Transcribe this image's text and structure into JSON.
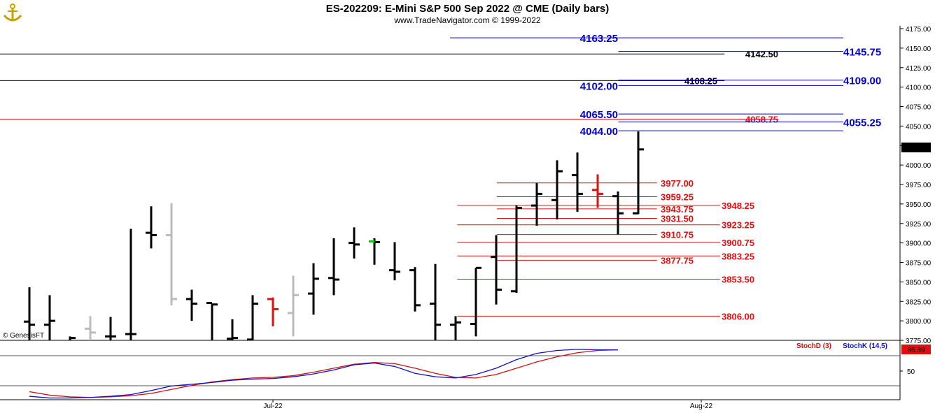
{
  "header": {
    "title": "ES-202209:  E-Mini S&P 500 Sep 2022 @ CME  (Daily bars)",
    "subtitle": "www.TradeNavigator.com © 1999-2022",
    "copyright": "© GenesisFT",
    "logo_icon": "anchor-logo-icon"
  },
  "colors": {
    "black": "#000000",
    "blue": "#0000cc",
    "red": "#e01010",
    "gray": "#bbbbbb",
    "green": "#00cc00",
    "stochD": "#d01010",
    "stochK": "#1010d0"
  },
  "chart_data": [
    {
      "type": "ohlc",
      "title": "ES-202209:  E-Mini S&P 500 Sep 2022 @ CME  (Daily bars)",
      "ylim": [
        3775,
        4175
      ],
      "y_ticks": [
        "4175.00",
        "4150.00",
        "4125.00",
        "4100.00",
        "4075.00",
        "4050.00",
        "4025.00",
        "4000.00",
        "3975.00",
        "3950.00",
        "3925.00",
        "3900.00",
        "3875.00",
        "3850.00",
        "3825.00",
        "3800.00",
        "3775.00"
      ],
      "x_ticks": [
        "Jul-22",
        "Aug-22"
      ],
      "last_price": "4020.50",
      "bars": [
        {
          "o": 3799,
          "h": 3843,
          "l": 3775,
          "c": 3795,
          "color": "black"
        },
        {
          "o": 3795,
          "h": 3833,
          "l": 3775,
          "c": 3800,
          "color": "black"
        },
        {
          "o": 3768,
          "h": 3780,
          "l": 3770,
          "c": 3778,
          "color": "black"
        },
        {
          "o": 3790,
          "h": 3806,
          "l": 3775,
          "c": 3785,
          "color": "gray"
        },
        {
          "o": 3780,
          "h": 3805,
          "l": 3775,
          "c": 3780,
          "color": "black"
        },
        {
          "o": 3783,
          "h": 3918,
          "l": 3775,
          "c": 3783,
          "color": "black"
        },
        {
          "o": 3913,
          "h": 3947,
          "l": 3893,
          "c": 3910,
          "color": "black"
        },
        {
          "o": 3910,
          "h": 3951,
          "l": 3820,
          "c": 3828,
          "color": "gray"
        },
        {
          "o": 3828,
          "h": 3840,
          "l": 3800,
          "c": 3822,
          "color": "black"
        },
        {
          "o": 3823,
          "h": 3822,
          "l": 3766,
          "c": 3821,
          "color": "black"
        },
        {
          "o": 3777,
          "h": 3802,
          "l": 3760,
          "c": 3778,
          "color": "black"
        },
        {
          "o": 3776,
          "h": 3833,
          "l": 3773,
          "c": 3822,
          "color": "black"
        },
        {
          "o": 3828,
          "h": 3830,
          "l": 3793,
          "c": 3815,
          "color": "red"
        },
        {
          "o": 3810,
          "h": 3858,
          "l": 3780,
          "c": 3833,
          "color": "gray"
        },
        {
          "o": 3835,
          "h": 3874,
          "l": 3808,
          "c": 3854,
          "color": "black"
        },
        {
          "o": 3855,
          "h": 3906,
          "l": 3833,
          "c": 3853,
          "color": "black"
        },
        {
          "o": 3900,
          "h": 3920,
          "l": 3880,
          "c": 3898,
          "color": "black"
        },
        {
          "o": 3902,
          "h": 3906,
          "l": 3872,
          "c": 3901,
          "color": "green_open"
        },
        {
          "o": 3865,
          "h": 3901,
          "l": 3852,
          "c": 3863,
          "color": "black"
        },
        {
          "o": 3865,
          "h": 3869,
          "l": 3812,
          "c": 3820,
          "color": "black"
        },
        {
          "o": 3822,
          "h": 3873,
          "l": 3775,
          "c": 3795,
          "color": "black"
        },
        {
          "o": 3795,
          "h": 3806,
          "l": 3775,
          "c": 3798,
          "color": "black"
        },
        {
          "o": 3796,
          "h": 3868,
          "l": 3780,
          "c": 3868,
          "color": "black"
        },
        {
          "o": 3882,
          "h": 3910,
          "l": 3821,
          "c": 3840,
          "color": "black"
        },
        {
          "o": 3838,
          "h": 3948,
          "l": 3836,
          "c": 3945,
          "color": "black"
        },
        {
          "o": 3948,
          "h": 3977,
          "l": 3922,
          "c": 3963,
          "color": "black"
        },
        {
          "o": 3955,
          "h": 4006,
          "l": 3930,
          "c": 3992,
          "color": "black"
        },
        {
          "o": 3987,
          "h": 4016,
          "l": 3940,
          "c": 3963,
          "color": "black"
        },
        {
          "o": 3968,
          "h": 3988,
          "l": 3945,
          "c": 3963,
          "color": "red"
        },
        {
          "o": 3960,
          "h": 3966,
          "l": 3911,
          "c": 3938,
          "color": "black"
        },
        {
          "o": 3938,
          "h": 4043,
          "l": 3937,
          "c": 4020,
          "color": "black"
        }
      ],
      "levels": [
        {
          "value": "4163.25",
          "y": 4163.25,
          "color": "blue",
          "x0": 0.5,
          "x1": 0.937,
          "label_side": "left_big"
        },
        {
          "value": "4142.50",
          "y": 4142.5,
          "color": "black",
          "x0": 0.0,
          "x1": 0.805,
          "label_side": "mid_black"
        },
        {
          "value": "4145.75",
          "y": 4145.75,
          "color": "blue",
          "x0": 0.687,
          "x1": 0.937,
          "label_side": "right_big"
        },
        {
          "value": "4108.25",
          "y": 4108.25,
          "color": "black",
          "x0": 0.0,
          "x1": 0.805,
          "label_side": "mid_black2"
        },
        {
          "value": "4109.00",
          "y": 4109.0,
          "color": "blue",
          "x0": 0.687,
          "x1": 0.937,
          "label_side": "right_big"
        },
        {
          "value": "4102.00",
          "y": 4102.0,
          "color": "blue",
          "x0": 0.687,
          "x1": 0.937,
          "label_side": "left_big"
        },
        {
          "value": "4065.50",
          "y": 4065.5,
          "color": "blue",
          "x0": 0.687,
          "x1": 0.937,
          "label_side": "left_big"
        },
        {
          "value": "4058.75",
          "y": 4058.75,
          "color": "red",
          "x0": 0.0,
          "x1": 0.865,
          "label_side": "mid_red"
        },
        {
          "value": "4055.25",
          "y": 4055.25,
          "color": "blue",
          "x0": 0.687,
          "x1": 0.937,
          "label_side": "right_big"
        },
        {
          "value": "4044.00",
          "y": 4044.0,
          "color": "blue",
          "x0": 0.687,
          "x1": 0.937,
          "label_side": "left_big"
        },
        {
          "value": "3977.00",
          "y": 3977.0,
          "color": "red",
          "x0": 0.552,
          "x1": 0.73,
          "label_side": "red_a"
        },
        {
          "value": "3959.25",
          "y": 3959.25,
          "color": "red",
          "x0": 0.552,
          "x1": 0.73,
          "label_side": "red_a"
        },
        {
          "value": "3948.25",
          "y": 3948.25,
          "color": "red",
          "x0": 0.508,
          "x1": 0.8,
          "label_side": "red_b"
        },
        {
          "value": "3943.75",
          "y": 3943.75,
          "color": "red",
          "x0": 0.552,
          "x1": 0.73,
          "label_side": "red_a"
        },
        {
          "value": "3931.50",
          "y": 3931.5,
          "color": "red",
          "x0": 0.552,
          "x1": 0.73,
          "label_side": "red_a"
        },
        {
          "value": "3923.25",
          "y": 3923.25,
          "color": "red",
          "x0": 0.508,
          "x1": 0.8,
          "label_side": "red_b"
        },
        {
          "value": "3910.75",
          "y": 3910.75,
          "color": "red",
          "x0": 0.552,
          "x1": 0.73,
          "label_side": "red_a"
        },
        {
          "value": "3900.75",
          "y": 3900.75,
          "color": "red",
          "x0": 0.508,
          "x1": 0.8,
          "label_side": "red_b"
        },
        {
          "value": "3883.25",
          "y": 3883.25,
          "color": "red",
          "x0": 0.508,
          "x1": 0.8,
          "label_side": "red_b"
        },
        {
          "value": "3877.75",
          "y": 3877.75,
          "color": "red",
          "x0": 0.552,
          "x1": 0.73,
          "label_side": "red_a"
        },
        {
          "value": "3853.50",
          "y": 3853.5,
          "color": "red",
          "x0": 0.508,
          "x1": 0.8,
          "label_side": "red_b"
        },
        {
          "value": "3806.00",
          "y": 3806.0,
          "color": "red",
          "x0": 0.508,
          "x1": 0.8,
          "label_side": "red_b"
        }
      ]
    },
    {
      "type": "line",
      "title": "",
      "ylim": [
        0,
        100
      ],
      "y_ticks": [
        "50"
      ],
      "last_value": "86.89",
      "legend": [
        "StochD (3)",
        "StochK (14,5)"
      ],
      "series": [
        {
          "name": "StochD (3)",
          "color": "red",
          "values": [
            14,
            8,
            5,
            4,
            5,
            7,
            11,
            18,
            25,
            31,
            35,
            38,
            39,
            42,
            48,
            55,
            62,
            65,
            63,
            55,
            46,
            39,
            38,
            44,
            55,
            66,
            75,
            82,
            86,
            87
          ]
        },
        {
          "name": "StochK (14,5)",
          "color": "blue",
          "values": [
            6,
            3,
            3,
            4,
            6,
            9,
            16,
            24,
            27,
            30,
            34,
            36,
            37,
            40,
            45,
            52,
            61,
            64,
            58,
            46,
            40,
            38,
            44,
            55,
            70,
            81,
            86,
            88,
            87,
            87
          ]
        }
      ]
    }
  ]
}
